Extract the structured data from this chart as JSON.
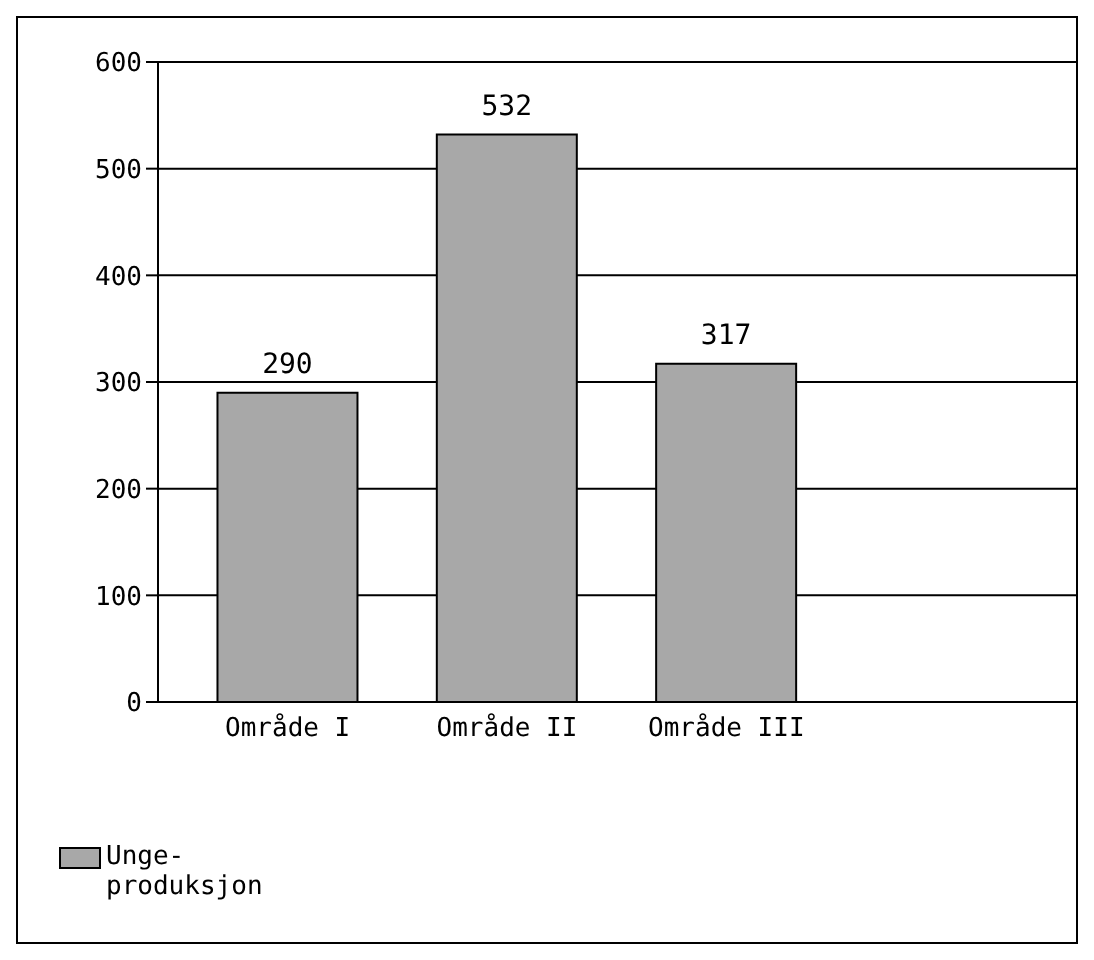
{
  "chart_data": {
    "type": "bar",
    "categories": [
      "Område I",
      "Område II",
      "Område III"
    ],
    "series": [
      {
        "name": "Unge-produksjon",
        "color": "#a8a8a8",
        "values": [
          290,
          532,
          317
        ]
      }
    ],
    "ylim": [
      0,
      600
    ],
    "yticks": [
      0,
      100,
      200,
      300,
      400,
      500,
      600
    ],
    "grid": "y",
    "data_labels": true,
    "legend": "bottom left"
  }
}
